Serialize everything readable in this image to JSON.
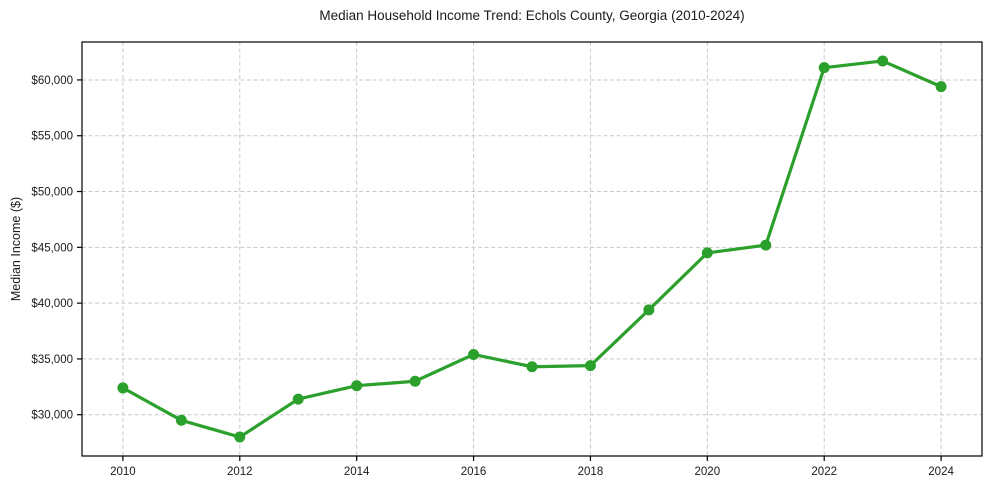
{
  "chart_data": {
    "type": "line",
    "title": "Median Household Income Trend: Echols County, Georgia (2010-2024)",
    "xlabel": "",
    "ylabel": "Median Income ($)",
    "x": [
      2010,
      2011,
      2012,
      2013,
      2014,
      2015,
      2016,
      2017,
      2018,
      2019,
      2020,
      2021,
      2022,
      2023,
      2024
    ],
    "series": [
      {
        "name": "Median Household Income",
        "color": "#2ca02c",
        "marker": "circle",
        "values": [
          32400,
          29500,
          28000,
          31400,
          32600,
          33000,
          35400,
          34300,
          34400,
          39400,
          44500,
          45200,
          61100,
          61700,
          59400
        ]
      }
    ],
    "x_ticks": [
      2010,
      2012,
      2014,
      2016,
      2018,
      2020,
      2022,
      2024
    ],
    "x_tick_labels": [
      "2010",
      "2012",
      "2014",
      "2016",
      "2018",
      "2020",
      "2022",
      "2024"
    ],
    "y_ticks": [
      30000,
      35000,
      40000,
      45000,
      50000,
      55000,
      60000
    ],
    "y_tick_labels": [
      "$30,000",
      "$35,000",
      "$40,000",
      "$45,000",
      "$50,000",
      "$55,000",
      "$60,000"
    ],
    "xlim": [
      2009.3,
      2024.7
    ],
    "ylim": [
      26300,
      63400
    ],
    "grid": true,
    "grid_style": "dashed",
    "legend_position": "none",
    "colors": {
      "line": "#2ca02c",
      "grid": "#c9c9c9",
      "axis": "#000000",
      "text": "#1a1a1a",
      "background": "#ffffff"
    }
  }
}
